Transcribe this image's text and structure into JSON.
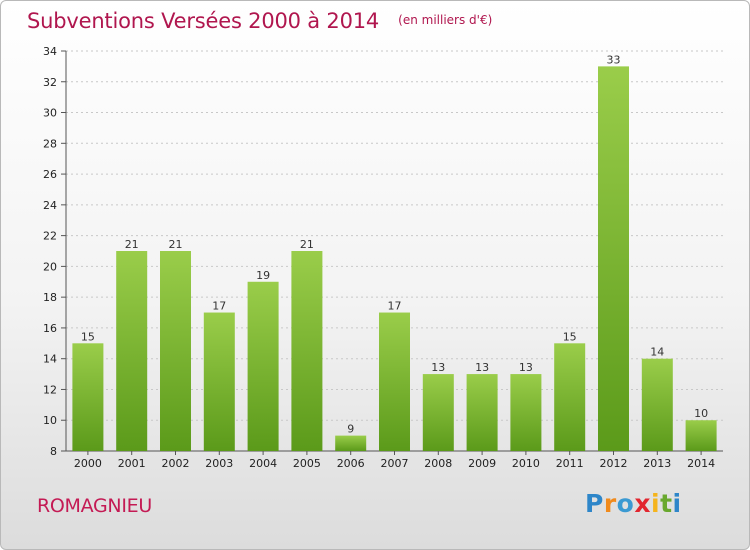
{
  "header": {
    "title": "Subventions Versées 2000 à 2014",
    "subtitle": "(en milliers d'€)"
  },
  "footer": {
    "commune": "ROMAGNIEU",
    "logo_text": "Proxiti"
  },
  "colors": {
    "title": "#b0164e",
    "bar_top": "#9acd4a",
    "bar_bottom": "#5b9a1a"
  },
  "chart_data": {
    "type": "bar",
    "title": "Subventions Versées 2000 à 2014",
    "subtitle": "(en milliers d'€)",
    "xlabel": "",
    "ylabel": "",
    "categories": [
      "2000",
      "2001",
      "2002",
      "2003",
      "2004",
      "2005",
      "2006",
      "2007",
      "2008",
      "2009",
      "2010",
      "2011",
      "2012",
      "2013",
      "2014"
    ],
    "values": [
      15,
      21,
      21,
      17,
      19,
      21,
      9,
      17,
      13,
      13,
      13,
      15,
      33,
      14,
      10
    ],
    "ylim": [
      8,
      34
    ],
    "yticks": [
      8,
      10,
      12,
      14,
      16,
      18,
      20,
      22,
      24,
      26,
      28,
      30,
      32,
      34
    ],
    "grid": true,
    "legend": "none"
  }
}
